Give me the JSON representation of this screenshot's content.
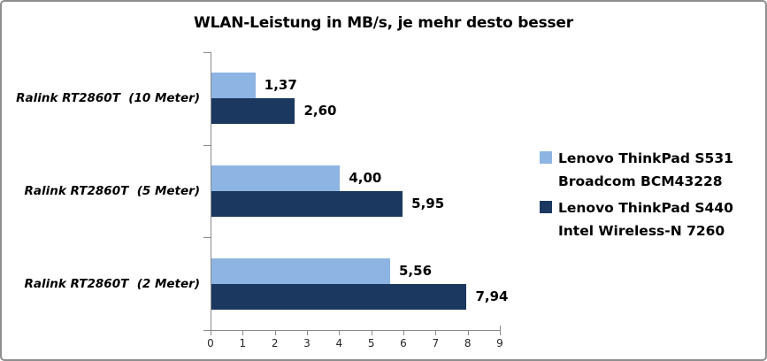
{
  "chart_data": {
    "type": "bar",
    "orientation": "horizontal",
    "title": "WLAN-Leistung in MB/s, je mehr desto besser",
    "categories": [
      "Ralink RT2860T  (10 Meter)",
      "Ralink RT2860T  (5 Meter)",
      "Ralink RT2860T  (2 Meter)"
    ],
    "series": [
      {
        "name": "Lenovo ThinkPad S531 Broadcom BCM43228",
        "legend_lines": [
          "Lenovo ThinkPad S531",
          "Broadcom BCM43228"
        ],
        "color": "#8DB4E2",
        "values": [
          1.37,
          4.0,
          5.56
        ],
        "value_labels": [
          "1,37",
          "4,00",
          "5,56"
        ]
      },
      {
        "name": "Lenovo ThinkPad S440 Intel Wireless-N 7260",
        "legend_lines": [
          "Lenovo ThinkPad S440",
          "Intel Wireless-N 7260"
        ],
        "color": "#1B3860",
        "values": [
          2.6,
          5.95,
          7.94
        ],
        "value_labels": [
          "2,60",
          "5,95",
          "7,94"
        ]
      }
    ],
    "xlim": [
      0,
      9
    ],
    "x_ticks": [
      "0",
      "1",
      "2",
      "3",
      "4",
      "5",
      "6",
      "7",
      "8",
      "9"
    ],
    "legend_position": "right",
    "grid": false,
    "axis_color": "#8A8A8A",
    "value_unit": "MB/s"
  }
}
